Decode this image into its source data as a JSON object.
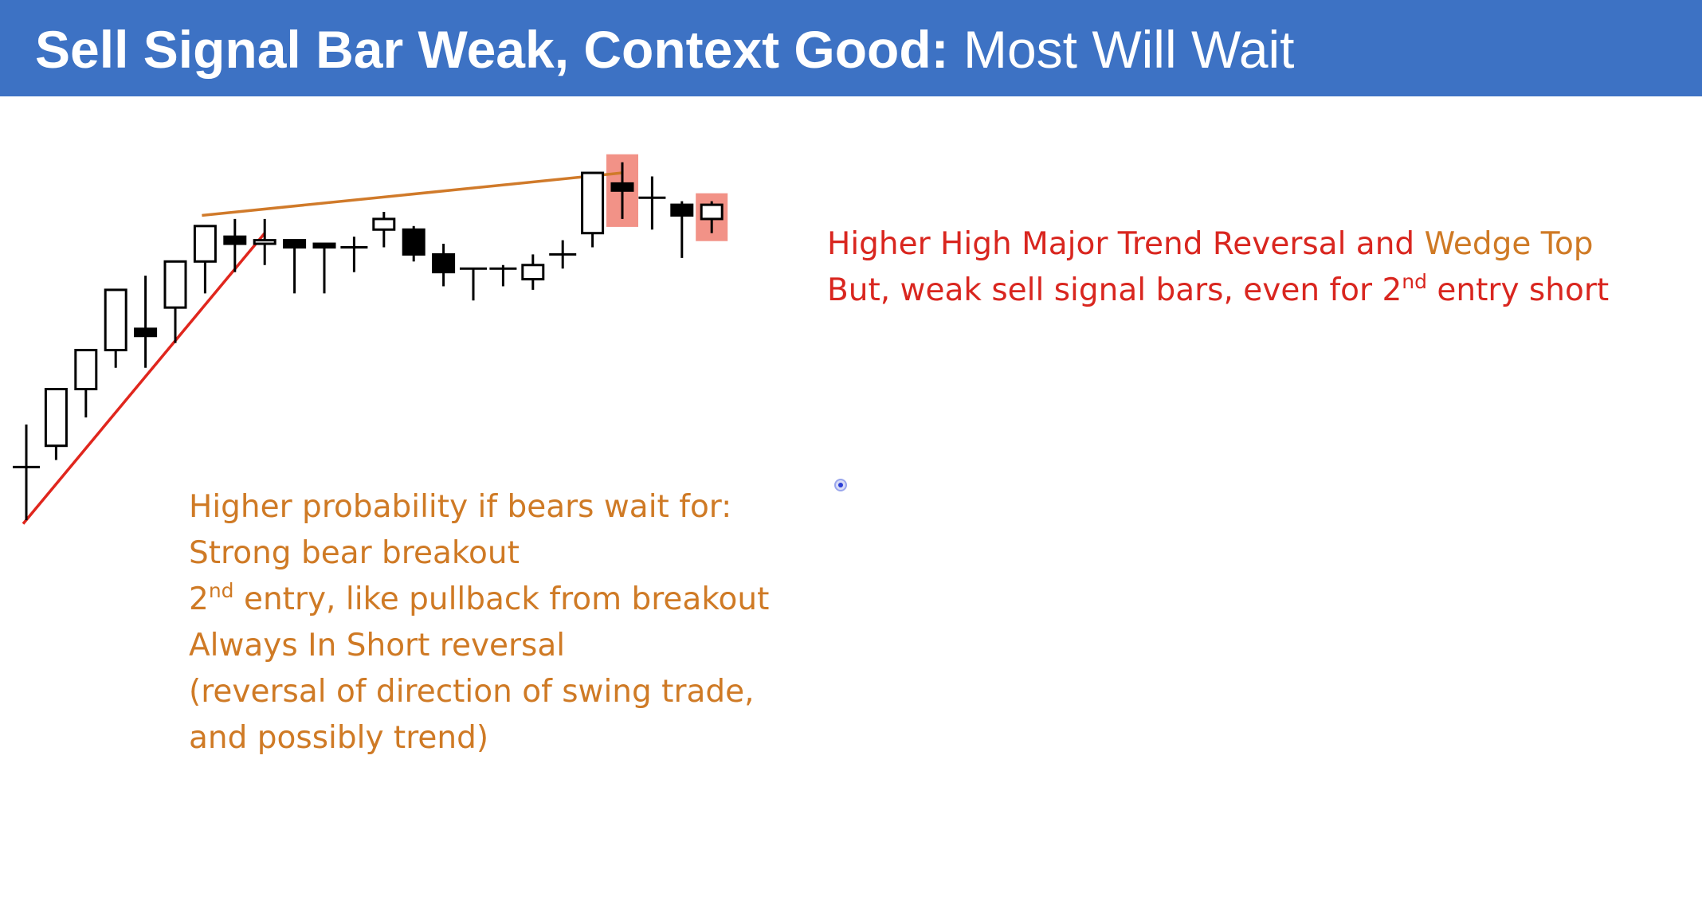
{
  "header": {
    "title_bold": "Sell Signal Bar Weak, Context Good:",
    "title_regular": " Most Will Wait"
  },
  "annotation_top": {
    "line1_red": "Higher High Major Trend Reversal and ",
    "line1_orange": "Wedge Top",
    "line2_pre": "But, weak sell signal bars, even for 2",
    "line2_sup": "nd",
    "line2_post": " entry short"
  },
  "annotation_bottom": {
    "line1": "Higher probability if bears wait for:",
    "line2": "Strong bear breakout",
    "line3_pre": "2",
    "line3_sup": "nd",
    "line3_post": " entry, like pullback from breakout",
    "line4": "Always In Short reversal",
    "line5": "(reversal of direction of swing trade,",
    "line6": "and possibly trend)"
  },
  "colors": {
    "header_bg": "#3d72c4",
    "text_red": "#d9261f",
    "text_orange": "#cf7a25",
    "trendline_red": "#e0261d",
    "wedge_line": "#d07a2a",
    "highlight": "#f07f72"
  },
  "chart_data": {
    "type": "candlestick",
    "title": "",
    "bars": [
      {
        "o": 28,
        "h": 40,
        "l": 13,
        "c": 28
      },
      {
        "o": 34,
        "h": 50,
        "l": 30,
        "c": 50
      },
      {
        "o": 50,
        "h": 61,
        "l": 42,
        "c": 61
      },
      {
        "o": 61,
        "h": 78,
        "l": 56,
        "c": 78
      },
      {
        "o": 67,
        "h": 82,
        "l": 56,
        "c": 65
      },
      {
        "o": 73,
        "h": 84,
        "l": 63,
        "c": 86
      },
      {
        "o": 86,
        "h": 94,
        "l": 77,
        "c": 96
      },
      {
        "o": 93,
        "h": 98,
        "l": 83,
        "c": 91
      },
      {
        "o": 91,
        "h": 98,
        "l": 85,
        "c": 92
      },
      {
        "o": 92,
        "h": 91,
        "l": 77,
        "c": 90
      },
      {
        "o": 91,
        "h": 90,
        "l": 77,
        "c": 90
      },
      {
        "o": 90,
        "h": 93,
        "l": 83,
        "c": 90
      },
      {
        "o": 95,
        "h": 100,
        "l": 90,
        "c": 98
      },
      {
        "o": 95,
        "h": 96,
        "l": 86,
        "c": 88
      },
      {
        "o": 88,
        "h": 91,
        "l": 79,
        "c": 83
      },
      {
        "o": 84,
        "h": 84,
        "l": 75,
        "c": 84
      },
      {
        "o": 84,
        "h": 85,
        "l": 79,
        "c": 84
      },
      {
        "o": 81,
        "h": 88,
        "l": 78,
        "c": 85
      },
      {
        "o": 88,
        "h": 92,
        "l": 84,
        "c": 88
      },
      {
        "o": 94,
        "h": 111,
        "l": 90,
        "c": 111
      },
      {
        "o": 108,
        "h": 114,
        "l": 98,
        "c": 106
      },
      {
        "o": 104,
        "h": 110,
        "l": 95,
        "c": 104
      },
      {
        "o": 102,
        "h": 103,
        "l": 87,
        "c": 99
      },
      {
        "o": 98,
        "h": 103,
        "l": 94,
        "c": 102
      }
    ],
    "highlighted_bars": [
      20,
      23
    ],
    "lines": [
      {
        "name": "bull-trendline",
        "from": [
          0,
          12
        ],
        "to": [
          8,
          94
        ]
      },
      {
        "name": "wedge-line",
        "from": [
          6,
          99
        ],
        "to": [
          20,
          111
        ]
      }
    ]
  }
}
